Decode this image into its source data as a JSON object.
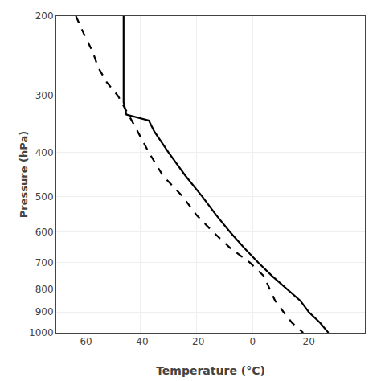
{
  "chart_data": {
    "type": "line",
    "xlabel": "Temperature (°C)",
    "ylabel": "Pressure (hPa)",
    "log": "y",
    "grid": true,
    "xlim": [
      -70,
      40
    ],
    "ylim": [
      1000,
      200
    ],
    "xticks": [
      -60,
      -40,
      -20,
      0,
      20
    ],
    "yticks": [
      200,
      300,
      400,
      500,
      600,
      700,
      800,
      900,
      1000
    ],
    "series": [
      {
        "color": "#000000",
        "line_style": "solid",
        "x": [
          -46,
          -46,
          -46,
          -46,
          -46,
          -46,
          -46,
          -45,
          -37,
          -35,
          -30,
          -24,
          -18,
          -13,
          -8,
          -3,
          2,
          7,
          12,
          17,
          20,
          24,
          27
        ],
        "values": [
          200,
          210,
          230,
          250,
          270,
          290,
          310,
          330,
          340,
          360,
          400,
          450,
          500,
          550,
          600,
          650,
          700,
          750,
          800,
          850,
          900,
          950,
          1000
        ]
      },
      {
        "color": "#000000",
        "line_style": "dashed",
        "x": [
          -63,
          -60,
          -57,
          -55,
          -52,
          -48,
          -42,
          -37,
          -32,
          -25,
          -20,
          -14,
          -8,
          -1,
          4,
          6,
          8,
          11,
          14,
          18
        ],
        "values": [
          200,
          220,
          240,
          260,
          280,
          300,
          350,
          400,
          450,
          500,
          550,
          600,
          650,
          700,
          750,
          800,
          850,
          900,
          950,
          1000
        ]
      }
    ]
  }
}
